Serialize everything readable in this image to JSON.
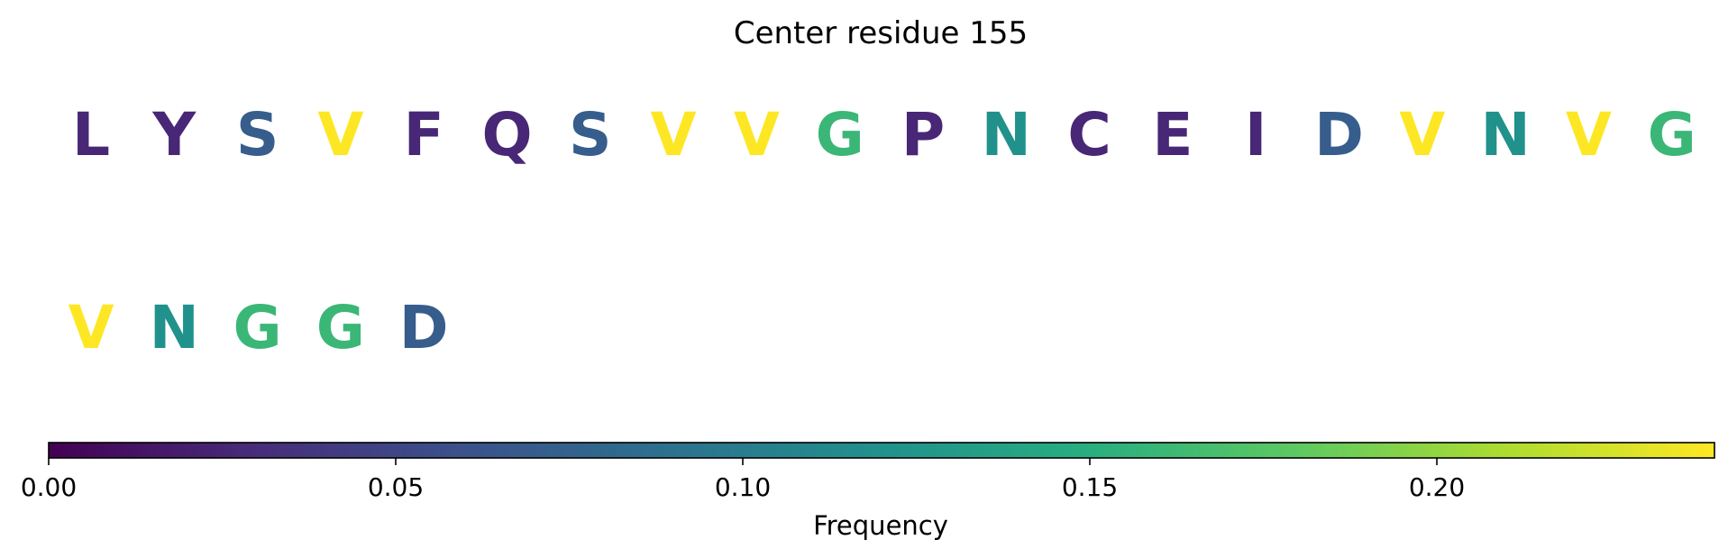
{
  "chart_data": {
    "type": "sequence-heatmap",
    "title": "Center residue 155",
    "residues": [
      {
        "letter": "L",
        "frequency": 0.026
      },
      {
        "letter": "Y",
        "frequency": 0.026
      },
      {
        "letter": "S",
        "frequency": 0.07
      },
      {
        "letter": "V",
        "frequency": 0.24
      },
      {
        "letter": "F",
        "frequency": 0.026
      },
      {
        "letter": "Q",
        "frequency": 0.026
      },
      {
        "letter": "S",
        "frequency": 0.07
      },
      {
        "letter": "V",
        "frequency": 0.24
      },
      {
        "letter": "V",
        "frequency": 0.24
      },
      {
        "letter": "G",
        "frequency": 0.16
      },
      {
        "letter": "P",
        "frequency": 0.026
      },
      {
        "letter": "N",
        "frequency": 0.12
      },
      {
        "letter": "C",
        "frequency": 0.026
      },
      {
        "letter": "E",
        "frequency": 0.026
      },
      {
        "letter": "I",
        "frequency": 0.026
      },
      {
        "letter": "D",
        "frequency": 0.07
      },
      {
        "letter": "V",
        "frequency": 0.24
      },
      {
        "letter": "N",
        "frequency": 0.12
      },
      {
        "letter": "V",
        "frequency": 0.24
      },
      {
        "letter": "G",
        "frequency": 0.16
      },
      {
        "letter": "V",
        "frequency": 0.24
      },
      {
        "letter": "N",
        "frequency": 0.12
      },
      {
        "letter": "G",
        "frequency": 0.16
      },
      {
        "letter": "G",
        "frequency": 0.16
      },
      {
        "letter": "D",
        "frequency": 0.07
      }
    ],
    "letters_per_row": 20,
    "colormap": "viridis",
    "colorbar": {
      "label": "Frequency",
      "range": [
        0,
        0.24
      ],
      "ticks": [
        0.0,
        0.05,
        0.1,
        0.15,
        0.2
      ],
      "tick_labels": [
        "0.00",
        "0.05",
        "0.10",
        "0.15",
        "0.20"
      ],
      "orientation": "horizontal"
    }
  }
}
